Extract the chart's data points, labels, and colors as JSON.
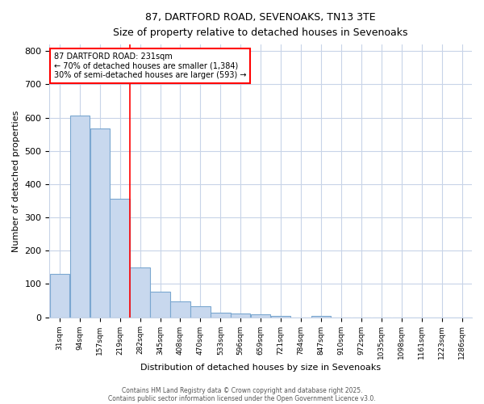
{
  "title_line1": "87, DARTFORD ROAD, SEVENOAKS, TN13 3TE",
  "title_line2": "Size of property relative to detached houses in Sevenoaks",
  "xlabel": "Distribution of detached houses by size in Sevenoaks",
  "ylabel": "Number of detached properties",
  "annotation_line1": "87 DARTFORD ROAD: 231sqm",
  "annotation_line2": "← 70% of detached houses are smaller (1,384)",
  "annotation_line3": "30% of semi-detached houses are larger (593) →",
  "bar_labels": [
    "31sqm",
    "94sqm",
    "157sqm",
    "219sqm",
    "282sqm",
    "345sqm",
    "408sqm",
    "470sqm",
    "533sqm",
    "596sqm",
    "659sqm",
    "721sqm",
    "784sqm",
    "847sqm",
    "910sqm",
    "972sqm",
    "1035sqm",
    "1098sqm",
    "1161sqm",
    "1223sqm",
    "1286sqm"
  ],
  "bar_values": [
    130,
    607,
    567,
    355,
    150,
    77,
    48,
    32,
    14,
    10,
    8,
    5,
    0,
    5,
    0,
    0,
    0,
    0,
    0,
    0,
    0
  ],
  "bar_color": "#c8d8ee",
  "bar_edge_color": "#7ba7d0",
  "background_color": "#ffffff",
  "grid_color": "#c8d4e8",
  "redline_x": 3,
  "ylim": [
    0,
    820
  ],
  "yticks": [
    0,
    100,
    200,
    300,
    400,
    500,
    600,
    700,
    800
  ],
  "footer_line1": "Contains HM Land Registry data © Crown copyright and database right 2025.",
  "footer_line2": "Contains public sector information licensed under the Open Government Licence v3.0."
}
